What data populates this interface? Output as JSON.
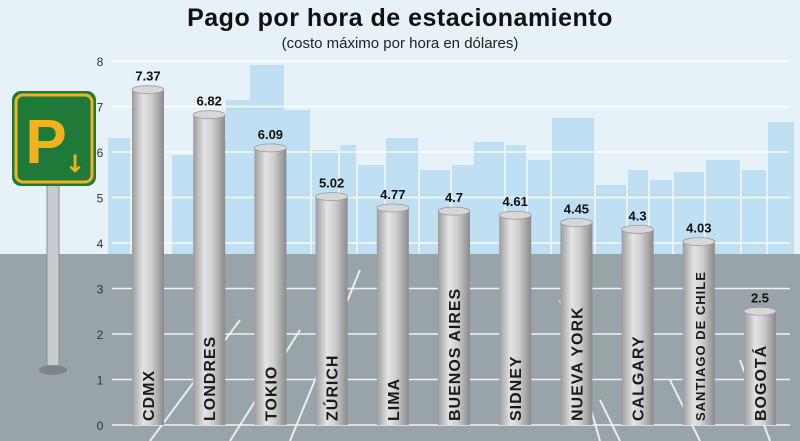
{
  "title": "Pago por hora de estacionamiento",
  "subtitle": "(costo máximo por hora en dólares)",
  "sign_letter": "P",
  "sign_arrow": "↓",
  "colors": {
    "sky": "#e7f1f8",
    "skyline": "#bfe0f3",
    "road": "#98a4a9",
    "bar_light": "#e2e2e2",
    "bar_dark": "#8f8f8f",
    "sign_green": "#1f7a3a",
    "sign_yellow": "#f2b21e"
  },
  "chart_data": {
    "type": "bar",
    "title": "Pago por hora de estacionamiento",
    "subtitle": "(costo máximo por hora en dólares)",
    "categories": [
      "CDMX",
      "LONDRES",
      "TOKIO",
      "ZÚRICH",
      "LIMA",
      "BUENOS AIRES",
      "SIDNEY",
      "NUEVA YORK",
      "CALGARY",
      "SANTIAGO DE CHILE",
      "BOGOTÁ"
    ],
    "values": [
      7.37,
      6.82,
      6.09,
      5.02,
      4.77,
      4.7,
      4.61,
      4.45,
      4.3,
      4.03,
      2.5
    ],
    "value_labels": [
      "7.37",
      "6.82",
      "6.09",
      "5.02",
      "4.77",
      "4.7",
      "4.61",
      "4.45",
      "4.3",
      "4.03",
      "2.5"
    ],
    "yticks": [
      "0",
      "1",
      "2",
      "3",
      "4",
      "5",
      "6",
      "7",
      "8"
    ],
    "ylim": [
      0,
      8
    ],
    "grid": true
  }
}
